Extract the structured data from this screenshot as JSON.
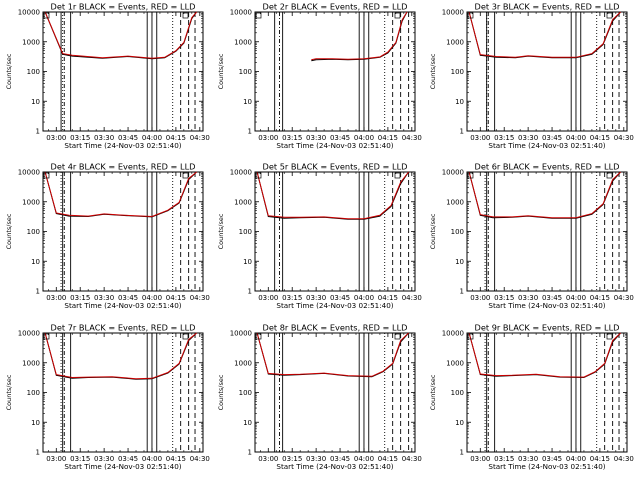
{
  "chart_data": {
    "type": "line",
    "layout": "3x3 grid",
    "y_scale": "log",
    "ylim": [
      1,
      10000
    ],
    "y_tick_labels": [
      "1",
      "10",
      "100",
      "1000",
      "10000"
    ],
    "x_tick_labels": [
      "03:00",
      "03:15",
      "03:30",
      "03:45",
      "04:00",
      "04:15",
      "04:30"
    ],
    "xlabel": "Start Time (24-Nov-03 02:51:40)",
    "ylabel": "Counts/sec",
    "series_colors": {
      "events": "#000000",
      "lld": "#cc0000"
    },
    "panels": [
      {
        "title": "Det 1r BLACK = Events, RED = LLD",
        "x_min": [
          "02:53",
          "03:04",
          "03:10",
          "03:29",
          "03:45",
          "04:00",
          "04:08",
          "04:15",
          "04:20",
          "04:25",
          "04:28"
        ],
        "events": [
          10000,
          380,
          330,
          280,
          320,
          270,
          290,
          480,
          900,
          6000,
          10000
        ],
        "lld": [
          10000,
          400,
          350,
          290,
          330,
          280,
          300,
          500,
          950,
          6500,
          10000
        ],
        "vlines_solid": [
          "03:03",
          "03:09",
          "03:57",
          "04:00",
          "04:03"
        ],
        "vlines_dotted": [
          "03:04",
          "04:13"
        ],
        "vlines_dashdot": [
          "03:05"
        ],
        "vlines_dashed": [
          "04:18",
          "04:23",
          "04:27"
        ]
      },
      {
        "title": "Det 2r BLACK = Events, RED = LLD",
        "x_min": [
          "03:27",
          "03:30",
          "03:40",
          "03:50",
          "04:00",
          "04:10",
          "04:15",
          "04:20",
          "04:24",
          "04:27"
        ],
        "events": [
          230,
          250,
          260,
          250,
          260,
          300,
          420,
          900,
          5000,
          10000
        ],
        "lld": [
          250,
          270,
          270,
          260,
          270,
          310,
          450,
          950,
          5500,
          10000
        ],
        "vlines_solid": [
          "03:04",
          "03:09",
          "03:57",
          "04:00",
          "04:03"
        ],
        "vlines_dotted": [
          "04:13"
        ],
        "vlines_dashdot": [
          "03:07"
        ],
        "vlines_dashed": [
          "04:18",
          "04:23",
          "04:28"
        ]
      },
      {
        "title": "Det 3r BLACK = Events, RED = LLD",
        "x_min": [
          "02:53",
          "03:00",
          "03:10",
          "03:22",
          "03:30",
          "03:45",
          "04:00",
          "04:10",
          "04:17",
          "04:23",
          "04:28"
        ],
        "events": [
          10000,
          350,
          300,
          290,
          330,
          290,
          290,
          380,
          800,
          5000,
          10000
        ],
        "lld": [
          10000,
          370,
          320,
          300,
          340,
          300,
          300,
          400,
          850,
          5500,
          10000
        ],
        "vlines_solid": [
          "03:04",
          "03:09",
          "03:57",
          "04:00",
          "04:03"
        ],
        "vlines_dotted": [
          "03:04",
          "04:13"
        ],
        "vlines_dashdot": [
          "03:05"
        ],
        "vlines_dashed": [
          "04:18",
          "04:23",
          "04:27"
        ]
      },
      {
        "title": "Det 4r BLACK = Events, RED = LLD",
        "x_min": [
          "02:53",
          "03:00",
          "03:08",
          "03:20",
          "03:30",
          "03:40",
          "04:00",
          "04:10",
          "04:17",
          "04:23",
          "04:28"
        ],
        "events": [
          10000,
          400,
          330,
          320,
          380,
          350,
          310,
          500,
          900,
          5500,
          10000
        ],
        "lld": [
          10000,
          420,
          350,
          330,
          390,
          360,
          320,
          520,
          950,
          6000,
          10000
        ],
        "vlines_solid": [
          "03:04",
          "03:09",
          "03:57",
          "04:00",
          "04:03"
        ],
        "vlines_dotted": [
          "03:03",
          "04:13"
        ],
        "vlines_dashdot": [
          "03:05"
        ],
        "vlines_dashed": [
          "04:18",
          "04:23",
          "04:27"
        ]
      },
      {
        "title": "Det 5r BLACK = Events, RED = LLD",
        "x_min": [
          "02:53",
          "03:00",
          "03:10",
          "03:20",
          "03:35",
          "03:50",
          "04:00",
          "04:10",
          "04:17",
          "04:23",
          "04:28"
        ],
        "events": [
          10000,
          320,
          280,
          290,
          300,
          260,
          260,
          330,
          700,
          4000,
          10000
        ],
        "lld": [
          10000,
          340,
          300,
          300,
          310,
          270,
          270,
          350,
          750,
          4500,
          10000
        ],
        "vlines_solid": [
          "03:04",
          "03:09",
          "03:57",
          "04:00",
          "04:03"
        ],
        "vlines_dotted": [
          "04:13"
        ],
        "vlines_dashdot": [
          "03:07"
        ],
        "vlines_dashed": [
          "04:18",
          "04:23",
          "04:28"
        ]
      },
      {
        "title": "Det 6r BLACK = Events, RED = LLD",
        "x_min": [
          "02:53",
          "03:00",
          "03:08",
          "03:20",
          "03:30",
          "03:45",
          "04:00",
          "04:10",
          "04:17",
          "04:23",
          "04:28"
        ],
        "events": [
          10000,
          350,
          290,
          300,
          330,
          280,
          280,
          380,
          800,
          5000,
          10000
        ],
        "lld": [
          10000,
          370,
          310,
          310,
          340,
          290,
          290,
          400,
          850,
          5500,
          10000
        ],
        "vlines_solid": [
          "03:04",
          "03:09",
          "03:57",
          "04:00",
          "04:03"
        ],
        "vlines_dotted": [
          "03:03",
          "04:13"
        ],
        "vlines_dashdot": [
          "03:05"
        ],
        "vlines_dashed": [
          "04:18",
          "04:23",
          "04:27"
        ]
      },
      {
        "title": "Det 7r BLACK = Events, RED = LLD",
        "x_min": [
          "02:53",
          "03:00",
          "03:10",
          "03:20",
          "03:35",
          "03:50",
          "04:00",
          "04:10",
          "04:17",
          "04:23",
          "04:28"
        ],
        "events": [
          10000,
          380,
          300,
          320,
          330,
          280,
          290,
          450,
          900,
          5500,
          10000
        ],
        "lld": [
          10000,
          400,
          320,
          330,
          340,
          290,
          300,
          470,
          950,
          6000,
          10000
        ],
        "vlines_solid": [
          "03:04",
          "03:09",
          "03:57",
          "04:00",
          "04:03"
        ],
        "vlines_dotted": [
          "03:03",
          "04:13"
        ],
        "vlines_dashdot": [
          "03:05"
        ],
        "vlines_dashed": [
          "04:18",
          "04:23",
          "04:27"
        ]
      },
      {
        "title": "Det 8r BLACK = Events, RED = LLD",
        "x_min": [
          "02:53",
          "03:00",
          "03:10",
          "03:20",
          "03:35",
          "03:50",
          "04:05",
          "04:12",
          "04:18",
          "04:23",
          "04:28"
        ],
        "events": [
          10000,
          420,
          380,
          400,
          440,
          360,
          340,
          500,
          900,
          5000,
          10000
        ],
        "lld": [
          10000,
          440,
          400,
          410,
          450,
          370,
          350,
          520,
          950,
          5500,
          10000
        ],
        "vlines_solid": [
          "03:04",
          "03:09",
          "03:57",
          "04:00",
          "04:03"
        ],
        "vlines_dotted": [
          "04:13"
        ],
        "vlines_dashdot": [
          "03:07"
        ],
        "vlines_dashed": [
          "04:18",
          "04:23",
          "04:28"
        ]
      },
      {
        "title": "Det 9r BLACK = Events, RED = LLD",
        "x_min": [
          "02:53",
          "03:00",
          "03:10",
          "03:20",
          "03:35",
          "03:50",
          "04:05",
          "04:12",
          "04:18",
          "04:23",
          "04:28"
        ],
        "events": [
          10000,
          400,
          350,
          370,
          400,
          330,
          320,
          480,
          900,
          5000,
          10000
        ],
        "lld": [
          10000,
          420,
          370,
          380,
          410,
          340,
          330,
          500,
          950,
          5500,
          10000
        ],
        "vlines_solid": [
          "03:04",
          "03:09",
          "03:57",
          "04:00",
          "04:03"
        ],
        "vlines_dotted": [
          "03:03",
          "04:13"
        ],
        "vlines_dashdot": [
          "03:05"
        ],
        "vlines_dashed": [
          "04:18",
          "04:23",
          "04:27"
        ]
      }
    ]
  }
}
